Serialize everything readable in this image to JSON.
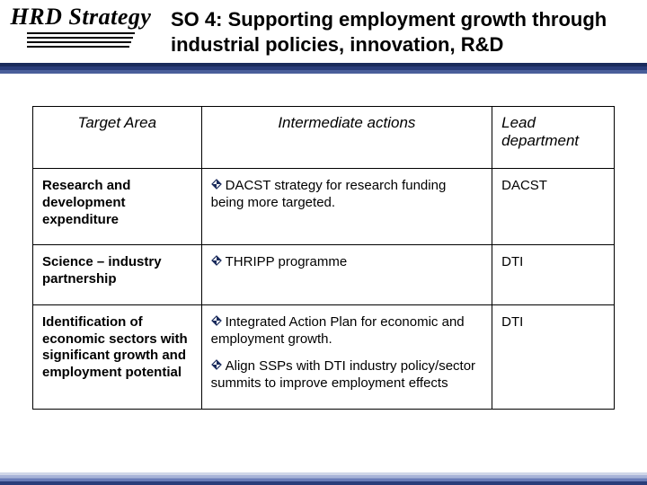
{
  "header": {
    "logo": "HRD Strategy",
    "title": "SO 4: Supporting employment growth through industrial policies, innovation, R&D"
  },
  "table": {
    "columns": [
      "Target Area",
      "Intermediate actions",
      "Lead department"
    ],
    "rows": [
      {
        "area": "Research and development expenditure",
        "actions": [
          "DACST strategy for research funding being more targeted."
        ],
        "lead": "DACST"
      },
      {
        "area": "Science – industry partnership",
        "actions": [
          "THRIPP programme"
        ],
        "lead": "DTI"
      },
      {
        "area": "Identification of economic sectors with significant growth and employment potential",
        "actions": [
          "Integrated Action Plan for economic and employment growth.",
          "Align SSPs with DTI industry policy/sector summits to improve employment effects"
        ],
        "lead": "DTI"
      }
    ]
  },
  "colors": {
    "header_band": "#1a2b5c",
    "footer_light": "#d0d6e8",
    "bullet": "#1a2b5c"
  }
}
